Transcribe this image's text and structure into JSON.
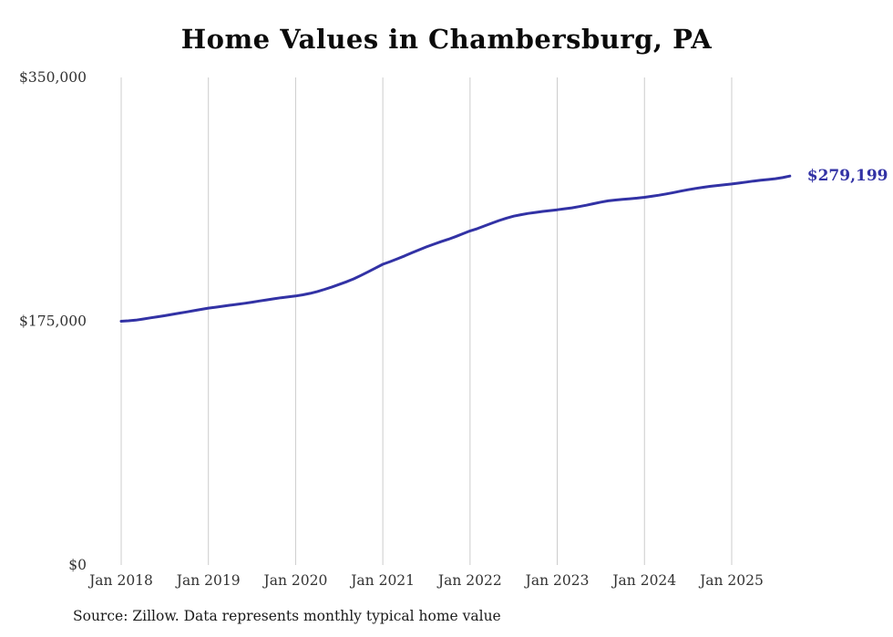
{
  "chart_data": {
    "type": "line",
    "title": "Home Values in Chambersburg, PA",
    "source": "Source: Zillow. Data represents monthly typical home value",
    "end_label": "$279,199",
    "end_value": 279199,
    "line_color": "#3232A5",
    "grid_color": "#CCCCCC",
    "axis_text_color": "#333333",
    "ylim": [
      0,
      350000
    ],
    "grid": "vertical-only",
    "legend": "none",
    "x_ticks": [
      "Jan 2018",
      "Jan 2019",
      "Jan 2020",
      "Jan 2021",
      "Jan 2022",
      "Jan 2023",
      "Jan 2024",
      "Jan 2025"
    ],
    "y_ticks": [
      {
        "label": "$0",
        "value": 0
      },
      {
        "label": "$175,000",
        "value": 175000
      },
      {
        "label": "$350,000",
        "value": 350000
      }
    ],
    "series": [
      {
        "name": "Monthly typical home value",
        "start_month": "Jan 2018",
        "end_month": "Sep 2025",
        "values": [
          175000,
          175300,
          175800,
          176600,
          177400,
          178200,
          179000,
          179900,
          180800,
          181700,
          182600,
          183500,
          184400,
          185100,
          185800,
          186500,
          187200,
          187900,
          188700,
          189500,
          190300,
          191100,
          191900,
          192500,
          193100,
          194000,
          195000,
          196300,
          197900,
          199600,
          201400,
          203300,
          205400,
          207900,
          210500,
          213200,
          215900,
          217800,
          219800,
          221900,
          224100,
          226300,
          228400,
          230300,
          232100,
          233800,
          235700,
          237800,
          239800,
          241500,
          243400,
          245400,
          247300,
          249000,
          250400,
          251500,
          252400,
          253100,
          253800,
          254400,
          255000,
          255700,
          256400,
          257300,
          258300,
          259400,
          260500,
          261400,
          262000,
          262500,
          262900,
          263400,
          264000,
          264700,
          265500,
          266400,
          267400,
          268400,
          269400,
          270300,
          271100,
          271800,
          272400,
          273000,
          273500,
          274200,
          274900,
          275600,
          276200,
          276700,
          277300,
          278100,
          279199
        ]
      }
    ]
  }
}
